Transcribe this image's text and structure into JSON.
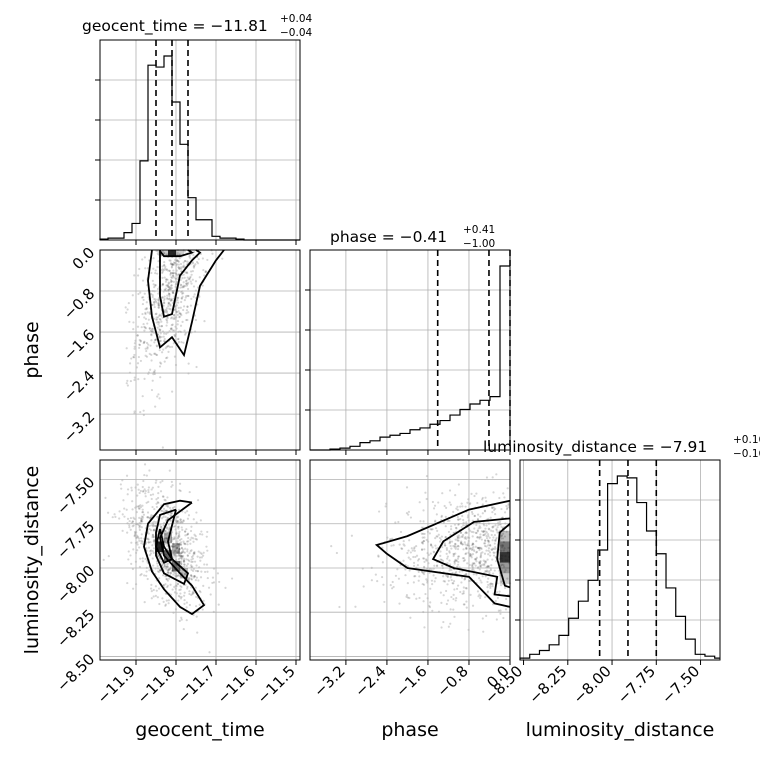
{
  "chart_data": {
    "type": "corner",
    "parameters": [
      {
        "name": "geocent_time",
        "title": "geocent_time = −11.81",
        "title_plus": "+0.04",
        "title_minus": "−0.04",
        "median": -11.81,
        "q_low": -11.85,
        "q_high": -11.77,
        "range": [
          -11.99,
          -11.49
        ],
        "ticks": [
          -11.9,
          -11.8,
          -11.7,
          -11.6,
          -11.5
        ],
        "tick_labels": [
          "−11.9",
          "−11.8",
          "−11.7",
          "−11.6",
          "−11.5"
        ],
        "hist_bins": [
          -11.99,
          -11.97,
          -11.95,
          -11.93,
          -11.91,
          -11.89,
          -11.87,
          -11.85,
          -11.83,
          -11.81,
          -11.79,
          -11.77,
          -11.75,
          -11.73,
          -11.71,
          -11.69,
          -11.67,
          -11.65,
          -11.63,
          -11.61,
          -11.59,
          -11.57,
          -11.55,
          -11.53,
          -11.51,
          -11.49
        ],
        "hist_density": [
          0.005,
          0.01,
          0.01,
          0.04,
          0.09,
          0.43,
          0.95,
          0.94,
          1.0,
          0.75,
          0.52,
          0.23,
          0.11,
          0.11,
          0.02,
          0.01,
          0.01,
          0.005,
          0.0,
          0.0,
          0.0,
          0.0,
          0.0,
          0.0,
          0.0
        ]
      },
      {
        "name": "phase",
        "title": "phase = −0.41",
        "title_plus": "+0.41",
        "title_minus": "−1.00",
        "median": -0.41,
        "q_low": -1.41,
        "q_high": 0.0,
        "range": [
          -3.9,
          0.0
        ],
        "ticks": [
          -3.2,
          -2.4,
          -1.6,
          -0.8,
          0.0
        ],
        "tick_labels": [
          "−3.2",
          "−2.4",
          "−1.6",
          "−0.8",
          "0.0"
        ],
        "hist_bins": [
          -3.9,
          -3.705,
          -3.51,
          -3.315,
          -3.12,
          -2.925,
          -2.73,
          -2.535,
          -2.34,
          -2.145,
          -1.95,
          -1.755,
          -1.56,
          -1.365,
          -1.17,
          -0.975,
          -0.78,
          -0.585,
          -0.39,
          -0.195,
          0.0
        ],
        "hist_density": [
          0.0,
          0.0,
          0.005,
          0.01,
          0.02,
          0.04,
          0.05,
          0.07,
          0.08,
          0.09,
          0.11,
          0.12,
          0.14,
          0.16,
          0.19,
          0.22,
          0.25,
          0.27,
          0.29,
          1.0
        ]
      },
      {
        "name": "luminosity_distance",
        "title": "luminosity_distance = −7.91",
        "title_plus": "+0.16",
        "title_minus": "−0.16",
        "median": -7.91,
        "q_low": -8.07,
        "q_high": -7.75,
        "range": [
          -8.52,
          -7.39
        ],
        "ticks": [
          -8.5,
          -8.25,
          -8.0,
          -7.75,
          -7.5
        ],
        "tick_labels": [
          "−8.50",
          "−8.25",
          "−8.00",
          "−7.75",
          "−7.50"
        ],
        "hist_bins": [
          -8.52,
          -8.465,
          -8.41,
          -8.355,
          -8.3,
          -8.245,
          -8.19,
          -8.135,
          -8.08,
          -8.025,
          -7.97,
          -7.915,
          -7.86,
          -7.805,
          -7.75,
          -7.695,
          -7.64,
          -7.585,
          -7.53,
          -7.475,
          -7.42,
          -7.39
        ],
        "hist_density": [
          0.01,
          0.03,
          0.05,
          0.08,
          0.13,
          0.22,
          0.31,
          0.42,
          0.58,
          0.93,
          0.97,
          0.96,
          0.83,
          0.68,
          0.56,
          0.38,
          0.23,
          0.11,
          0.03,
          0.02,
          0.01
        ]
      }
    ],
    "axis_labels": {
      "geocent_time": "geocent_time",
      "phase": "phase",
      "luminosity_distance": "luminosity_distance"
    },
    "contours": {
      "phase_vs_geocent_time": [
        [
          [
            -11.86,
            0.0
          ],
          [
            -11.87,
            -0.6
          ],
          [
            -11.86,
            -1.3
          ],
          [
            -11.84,
            -1.9
          ],
          [
            -11.81,
            -1.7
          ],
          [
            -11.78,
            -2.05
          ],
          [
            -11.76,
            -1.4
          ],
          [
            -11.74,
            -0.7
          ],
          [
            -11.7,
            -0.2
          ],
          [
            -11.68,
            0.0
          ]
        ],
        [
          [
            -11.84,
            0.0
          ],
          [
            -11.84,
            -0.9
          ],
          [
            -11.83,
            -1.3
          ],
          [
            -11.81,
            -1.25
          ],
          [
            -11.79,
            -0.5
          ],
          [
            -11.76,
            -0.2
          ],
          [
            -11.74,
            -0.05
          ],
          [
            -11.75,
            0.0
          ]
        ],
        [
          [
            -11.84,
            -0.02
          ],
          [
            -11.83,
            -0.12
          ],
          [
            -11.79,
            -0.12
          ],
          [
            -11.76,
            -0.05
          ],
          [
            -11.77,
            0.0
          ]
        ]
      ],
      "luminosity_distance_vs_geocent_time": [
        [
          [
            -11.76,
            -7.63
          ],
          [
            -11.79,
            -7.62
          ],
          [
            -11.83,
            -7.64
          ],
          [
            -11.87,
            -7.75
          ],
          [
            -11.88,
            -7.88
          ],
          [
            -11.86,
            -8.02
          ],
          [
            -11.83,
            -8.12
          ],
          [
            -11.79,
            -8.22
          ],
          [
            -11.76,
            -8.26
          ],
          [
            -11.73,
            -8.21
          ],
          [
            -11.76,
            -8.1
          ],
          [
            -11.79,
            -8.03
          ],
          [
            -11.83,
            -7.93
          ],
          [
            -11.84,
            -7.83
          ],
          [
            -11.82,
            -7.73
          ],
          [
            -11.76,
            -7.63
          ]
        ],
        [
          [
            -11.8,
            -7.67
          ],
          [
            -11.84,
            -7.7
          ],
          [
            -11.85,
            -7.8
          ],
          [
            -11.85,
            -7.93
          ],
          [
            -11.83,
            -8.03
          ],
          [
            -11.78,
            -8.09
          ],
          [
            -11.77,
            -8.03
          ],
          [
            -11.81,
            -7.95
          ],
          [
            -11.82,
            -7.85
          ],
          [
            -11.81,
            -7.76
          ],
          [
            -11.8,
            -7.67
          ]
        ],
        [
          [
            -11.84,
            -7.78
          ],
          [
            -11.85,
            -7.88
          ],
          [
            -11.83,
            -7.97
          ],
          [
            -11.81,
            -7.95
          ],
          [
            -11.83,
            -7.88
          ],
          [
            -11.84,
            -7.78
          ]
        ]
      ],
      "luminosity_distance_vs_phase": [
        [
          [
            0.0,
            -7.62
          ],
          [
            -0.8,
            -7.67
          ],
          [
            -2.0,
            -7.82
          ],
          [
            -2.6,
            -7.87
          ],
          [
            -2.4,
            -7.92
          ],
          [
            -2.0,
            -8.0
          ],
          [
            -0.8,
            -8.05
          ],
          [
            -0.3,
            -8.2
          ],
          [
            0.0,
            -8.22
          ]
        ],
        [
          [
            0.0,
            -7.72
          ],
          [
            -0.7,
            -7.74
          ],
          [
            -1.3,
            -7.85
          ],
          [
            -1.5,
            -7.95
          ],
          [
            -1.1,
            -8.0
          ],
          [
            -0.25,
            -8.05
          ],
          [
            -0.3,
            -8.15
          ],
          [
            0.0,
            -8.16
          ]
        ],
        [
          [
            0.0,
            -7.75
          ],
          [
            -0.2,
            -7.8
          ],
          [
            -0.25,
            -7.95
          ],
          [
            -0.1,
            -8.1
          ],
          [
            0.0,
            -8.11
          ]
        ]
      ]
    },
    "scatter_centers": {
      "phase_vs_geocent_time": {
        "x": -11.81,
        "y": -0.7
      },
      "luminosity_distance_vs_geocent_time": {
        "x": -11.82,
        "y": -7.88
      },
      "luminosity_distance_vs_phase": {
        "x": -0.6,
        "y": -7.9
      }
    }
  }
}
